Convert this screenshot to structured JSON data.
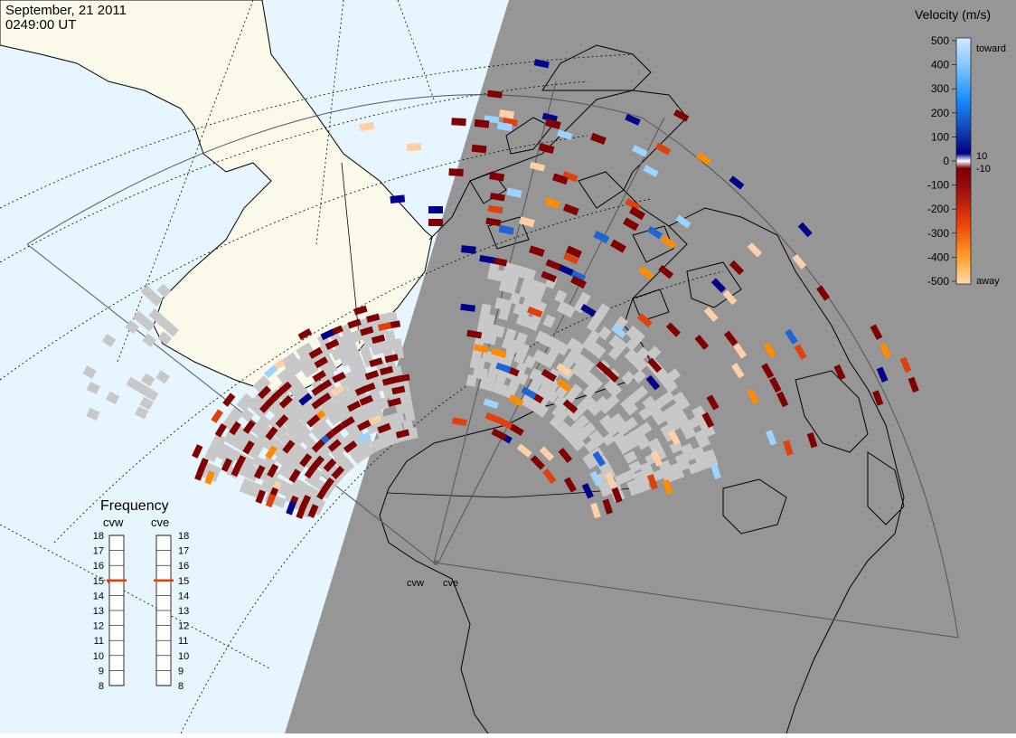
{
  "header": {
    "date": "September, 21 2011",
    "time": "0249:00 UT"
  },
  "colorbar": {
    "title": "Velocity (m/s)",
    "ticks": [
      "500",
      "400",
      "300",
      "200",
      "100",
      "0",
      "-100",
      "-200",
      "-300",
      "-400",
      "-500"
    ],
    "inner_pos": "10",
    "inner_neg": "-10",
    "toward_label": "toward",
    "away_label": "away"
  },
  "frequency": {
    "title": "Frequency",
    "radars": [
      "cvw",
      "cve"
    ],
    "levels": [
      "18",
      "17",
      "16",
      "15",
      "14",
      "13",
      "12",
      "11",
      "10",
      "9",
      "8"
    ],
    "current": {
      "cvw": 15,
      "cve": 15
    }
  },
  "radar_sites": [
    "cvw",
    "cve"
  ],
  "colors": {
    "night": "#969696",
    "ocean_day": "#e6f5fe",
    "land_day": "#fbf9e9",
    "ground_scatter": "#c8c8c8",
    "away_strong": "#800000",
    "away_mid": "#e0400c",
    "away_orange": "#ff8c00",
    "away_light": "#ffd0a8",
    "toward_strong": "#00008b",
    "toward_mid": "#1e64d6",
    "toward_light": "#9bd4ff"
  }
}
